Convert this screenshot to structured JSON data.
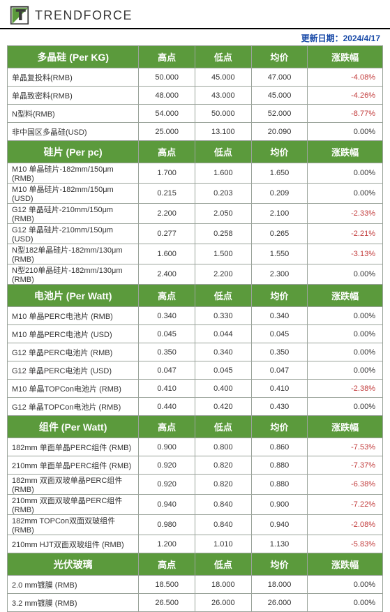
{
  "brand": "TRENDFORCE",
  "update_label": "更新日期：",
  "update_date": "2024/4/17",
  "col_headers": {
    "high": "高点",
    "low": "低点",
    "avg": "均价",
    "chg": "涨跌幅"
  },
  "colors": {
    "header_bg": "#5b9a3c",
    "header_fg": "#ffffff",
    "border": "#9aa39a",
    "neg": "#c23b3b",
    "update": "#1a4ba8",
    "logo_dark": "#3a3a3a",
    "logo_green": "#5b9a3c"
  },
  "sections": [
    {
      "title": "多晶硅 (Per KG)",
      "rows": [
        {
          "label": "单晶复投料(RMB)",
          "high": "50.000",
          "low": "45.000",
          "avg": "47.000",
          "chg": "-4.08%",
          "neg": true
        },
        {
          "label": "单晶致密料(RMB)",
          "high": "48.000",
          "low": "43.000",
          "avg": "45.000",
          "chg": "-4.26%",
          "neg": true
        },
        {
          "label": "N型料(RMB)",
          "high": "54.000",
          "low": "50.000",
          "avg": "52.000",
          "chg": "-8.77%",
          "neg": true
        },
        {
          "label": "非中国区多晶硅(USD)",
          "high": "25.000",
          "low": "13.100",
          "avg": "20.090",
          "chg": "0.00%",
          "neg": false
        }
      ]
    },
    {
      "title": "硅片 (Per pc)",
      "rows": [
        {
          "label": "M10 单晶硅片-182mm/150μm (RMB)",
          "high": "1.700",
          "low": "1.600",
          "avg": "1.650",
          "chg": "0.00%",
          "neg": false
        },
        {
          "label": "M10 单晶硅片-182mm/150μm (USD)",
          "high": "0.215",
          "low": "0.203",
          "avg": "0.209",
          "chg": "0.00%",
          "neg": false
        },
        {
          "label": "G12 单晶硅片-210mm/150μm  (RMB)",
          "high": "2.200",
          "low": "2.050",
          "avg": "2.100",
          "chg": "-2.33%",
          "neg": true
        },
        {
          "label": "G12 单晶硅片-210mm/150μm  (USD)",
          "high": "0.277",
          "low": "0.258",
          "avg": "0.265",
          "chg": "-2.21%",
          "neg": true
        },
        {
          "label": "N型182单晶硅片-182mm/130μm (RMB)",
          "high": "1.600",
          "low": "1.500",
          "avg": "1.550",
          "chg": "-3.13%",
          "neg": true
        },
        {
          "label": "N型210单晶硅片-182mm/130μm (RMB)",
          "high": "2.400",
          "low": "2.200",
          "avg": "2.300",
          "chg": "0.00%",
          "neg": false
        }
      ]
    },
    {
      "title": "电池片 (Per Watt)",
      "rows": [
        {
          "label": "M10 单晶PERC电池片 (RMB)",
          "high": "0.340",
          "low": "0.330",
          "avg": "0.340",
          "chg": "0.00%",
          "neg": false
        },
        {
          "label": "M10 单晶PERC电池片 (USD)",
          "high": "0.045",
          "low": "0.044",
          "avg": "0.045",
          "chg": "0.00%",
          "neg": false
        },
        {
          "label": "G12 单晶PERC电池片 (RMB)",
          "high": "0.350",
          "low": "0.340",
          "avg": "0.350",
          "chg": "0.00%",
          "neg": false
        },
        {
          "label": "G12 单晶PERC电池片 (USD)",
          "high": "0.047",
          "low": "0.045",
          "avg": "0.047",
          "chg": "0.00%",
          "neg": false
        },
        {
          "label": "M10 单晶TOPCon电池片 (RMB)",
          "high": "0.410",
          "low": "0.400",
          "avg": "0.410",
          "chg": "-2.38%",
          "neg": true
        },
        {
          "label": "G12 单晶TOPCon电池片 (RMB)",
          "high": "0.440",
          "low": "0.420",
          "avg": "0.430",
          "chg": "0.00%",
          "neg": false
        }
      ]
    },
    {
      "title": "组件 (Per Watt)",
      "rows": [
        {
          "label": "182mm 单面单晶PERC组件 (RMB)",
          "high": "0.900",
          "low": "0.800",
          "avg": "0.860",
          "chg": "-7.53%",
          "neg": true
        },
        {
          "label": "210mm 单面单晶PERC组件 (RMB)",
          "high": "0.920",
          "low": "0.820",
          "avg": "0.880",
          "chg": "-7.37%",
          "neg": true
        },
        {
          "label": "182mm 双面双玻单晶PERC组件 (RMB)",
          "high": "0.920",
          "low": "0.820",
          "avg": "0.880",
          "chg": "-6.38%",
          "neg": true
        },
        {
          "label": "210mm 双面双玻单晶PERC组件 (RMB)",
          "high": "0.940",
          "low": "0.840",
          "avg": "0.900",
          "chg": "-7.22%",
          "neg": true
        },
        {
          "label": "182mm TOPCon双面双玻组件 (RMB)",
          "high": "0.980",
          "low": "0.840",
          "avg": "0.940",
          "chg": "-2.08%",
          "neg": true
        },
        {
          "label": "210mm HJT双面双玻组件 (RMB)",
          "high": "1.200",
          "low": "1.010",
          "avg": "1.130",
          "chg": "-5.83%",
          "neg": true
        }
      ]
    },
    {
      "title": "光伏玻璃",
      "rows": [
        {
          "label": "2.0 mm镀膜 (RMB)",
          "high": "18.500",
          "low": "18.000",
          "avg": "18.000",
          "chg": "0.00%",
          "neg": false
        },
        {
          "label": "3.2 mm镀膜 (RMB)",
          "high": "26.500",
          "low": "26.000",
          "avg": "26.000",
          "chg": "0.00%",
          "neg": false
        }
      ]
    }
  ]
}
